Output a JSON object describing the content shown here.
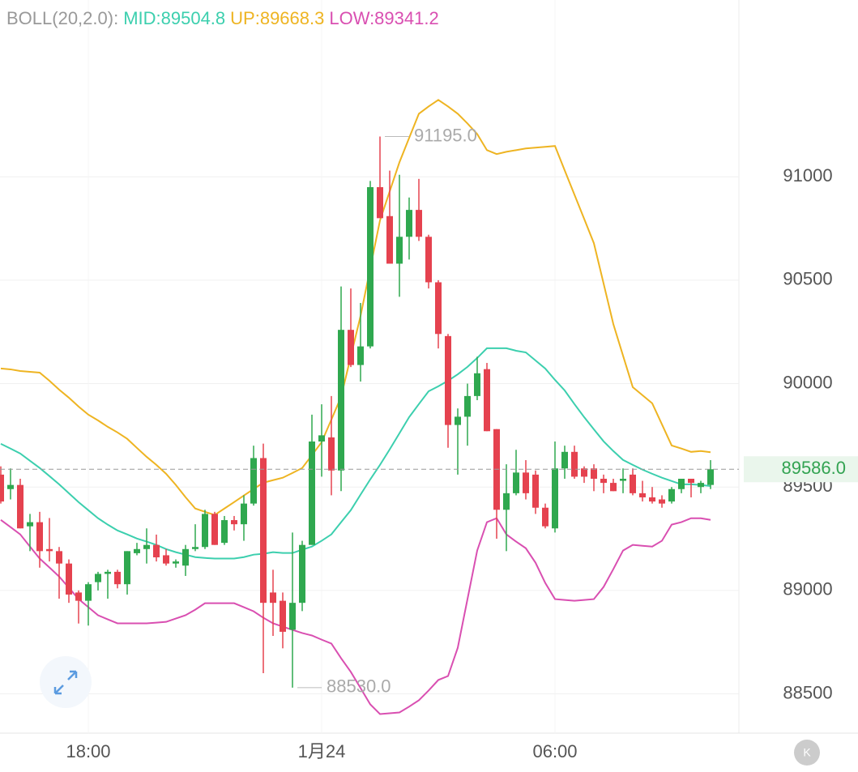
{
  "chart_data": {
    "type": "candlestick",
    "indicator": "BOLL(20,2.0):",
    "categories": [
      null,
      null,
      null,
      null,
      null,
      null,
      null,
      null,
      null,
      "18:00",
      null,
      null,
      null,
      null,
      null,
      null,
      null,
      null,
      null,
      null,
      null,
      null,
      null,
      null,
      null,
      null,
      null,
      null,
      null,
      null,
      null,
      null,
      null,
      "1月24",
      null,
      null,
      null,
      null,
      null,
      null,
      null,
      null,
      null,
      null,
      null,
      null,
      null,
      null,
      null,
      null,
      null,
      null,
      null,
      null,
      null,
      null,
      null,
      "06:00",
      null,
      null,
      null,
      null,
      null,
      null,
      null,
      null,
      null,
      null,
      null,
      null,
      null,
      null,
      null,
      null
    ],
    "open": [
      89560,
      89490,
      89510,
      89310,
      89330,
      89200,
      89190,
      89130,
      88990,
      88950,
      89040,
      89080,
      89090,
      89030,
      89180,
      89200,
      89220,
      89170,
      89130,
      89120,
      89200,
      89210,
      89370,
      89230,
      89340,
      89320,
      89420,
      89640,
      88990,
      88950,
      88810,
      88940,
      89220,
      89720,
      89740,
      89580,
      90260,
      90090,
      90180,
      90950,
      90810,
      90580,
      90710,
      90840,
      90710,
      90490,
      90230,
      89800,
      89840,
      89940,
      90070,
      89780,
      89390,
      89470,
      89570,
      89560,
      89400,
      89300,
      89590,
      89670,
      89590,
      89590,
      89540,
      89520,
      89530,
      89560,
      89470,
      89450,
      89440,
      89430,
      89490,
      89540,
      89500,
      89510
    ],
    "high": [
      89600,
      89590,
      89540,
      89370,
      89380,
      89350,
      89210,
      89150,
      89000,
      89040,
      89090,
      89100,
      89100,
      89190,
      89230,
      89300,
      89270,
      89200,
      89150,
      89220,
      89320,
      89390,
      89380,
      89360,
      89360,
      89460,
      89700,
      89710,
      89100,
      88990,
      89280,
      89240,
      89850,
      89900,
      89940,
      90470,
      90460,
      90390,
      90980,
      91195,
      91030,
      91010,
      90900,
      90990,
      90720,
      90500,
      90240,
      89880,
      90000,
      90130,
      90100,
      89780,
      89610,
      89680,
      89630,
      89580,
      89420,
      89720,
      89700,
      89700,
      89600,
      89610,
      89560,
      89540,
      89590,
      89590,
      89530,
      89500,
      89460,
      89500,
      89540,
      89540,
      89530,
      89630
    ],
    "low": [
      89420,
      89440,
      89300,
      89190,
      89110,
      89140,
      88960,
      88940,
      88840,
      88830,
      89000,
      88960,
      89010,
      88980,
      89170,
      89130,
      89140,
      89120,
      89110,
      89070,
      89190,
      89200,
      89220,
      89220,
      89290,
      89240,
      89410,
      88600,
      88780,
      88720,
      88530,
      88900,
      89220,
      89550,
      89460,
      89480,
      90080,
      90010,
      90170,
      90800,
      90580,
      90420,
      90600,
      90690,
      90460,
      90170,
      89690,
      89560,
      89700,
      89920,
      89770,
      89250,
      89190,
      89460,
      89440,
      89370,
      89300,
      89280,
      89540,
      89540,
      89520,
      89480,
      89470,
      89480,
      89470,
      89460,
      89430,
      89420,
      89400,
      89420,
      89470,
      89450,
      89470,
      89490
    ],
    "close": [
      89430,
      89510,
      89300,
      89330,
      89190,
      89190,
      89130,
      88980,
      88950,
      89030,
      89080,
      89090,
      89030,
      89190,
      89200,
      89220,
      89160,
      89130,
      89140,
      89200,
      89210,
      89370,
      89220,
      89340,
      89320,
      89420,
      89640,
      88940,
      88940,
      88800,
      88940,
      89220,
      89720,
      89750,
      89580,
      90260,
      90090,
      90180,
      90950,
      90800,
      90580,
      90710,
      90840,
      90710,
      90490,
      90240,
      89800,
      89840,
      89940,
      90050,
      89770,
      89390,
      89470,
      89570,
      89470,
      89400,
      89310,
      89590,
      89670,
      89550,
      89550,
      89540,
      89520,
      89480,
      89540,
      89470,
      89450,
      89430,
      89420,
      89490,
      89540,
      89520,
      89520,
      89586
    ],
    "up_color": "#2fa84f",
    "down_color": "#e5424f",
    "series": [
      {
        "name": "MID:89504.8",
        "color": "#3ccfae",
        "values": [
          89709,
          89686,
          89662,
          89627,
          89592,
          89553,
          89513,
          89470,
          89427,
          89388,
          89349,
          89318,
          89290,
          89271,
          89251,
          89236,
          89220,
          89200,
          89185,
          89173,
          89161,
          89157,
          89154,
          89154,
          89154,
          89161,
          89173,
          89177,
          89185,
          89181,
          89181,
          89197,
          89212,
          89240,
          89271,
          89330,
          89388,
          89463,
          89537,
          89607,
          89682,
          89760,
          89838,
          89901,
          89963,
          89987,
          90014,
          90045,
          90081,
          90124,
          90171,
          90171,
          90171,
          90159,
          90151,
          90112,
          90073,
          90018,
          89967,
          89901,
          89838,
          89779,
          89721,
          89674,
          89631,
          89607,
          89584,
          89564,
          89545,
          89529,
          89513,
          89513,
          89510,
          89504.8
        ]
      },
      {
        "name": "UP:89668.3",
        "color": "#eeb422",
        "values": [
          90073,
          90069,
          90061,
          90057,
          90053,
          90014,
          89971,
          89932,
          89889,
          89850,
          89822,
          89791,
          89764,
          89733,
          89689,
          89646,
          89607,
          89564,
          89510,
          89451,
          89396,
          89380,
          89365,
          89396,
          89427,
          89459,
          89490,
          89521,
          89533,
          89545,
          89568,
          89592,
          89654,
          89717,
          89826,
          89936,
          90132,
          90327,
          90558,
          90789,
          90930,
          91070,
          91188,
          91305,
          91340,
          91372,
          91340,
          91305,
          91258,
          91207,
          91129,
          91110,
          91121,
          91129,
          91137,
          91141,
          91145,
          91149,
          91031,
          90914,
          90797,
          90679,
          90484,
          90288,
          90135,
          89983,
          89944,
          89905,
          89803,
          89701,
          89686,
          89670,
          89674,
          89668.3
        ]
      },
      {
        "name": "LOW:89341.2",
        "color": "#d94fb1",
        "values": [
          89341,
          89306,
          89271,
          89212,
          89154,
          89111,
          89067,
          89013,
          88958,
          88919,
          88880,
          88860,
          88841,
          88841,
          88841,
          88841,
          88844,
          88848,
          88864,
          88880,
          88907,
          88938,
          88938,
          88938,
          88938,
          88919,
          88899,
          88868,
          88841,
          88825,
          88809,
          88794,
          88782,
          88762,
          88743,
          88672,
          88606,
          88528,
          88449,
          88402,
          88406,
          88410,
          88438,
          88469,
          88516,
          88567,
          88586,
          88723,
          88958,
          89193,
          89330,
          89349,
          89271,
          89236,
          89204,
          89134,
          89036,
          88958,
          88954,
          88950,
          88954,
          88958,
          89017,
          89103,
          89193,
          89220,
          89216,
          89212,
          89240,
          89318,
          89330,
          89349,
          89349,
          89341.2
        ]
      }
    ],
    "ylim": [
      88310,
      91855
    ],
    "yticks": [
      88500,
      89000,
      89500,
      90000,
      90500,
      91000
    ],
    "grid": true,
    "last_price": {
      "value": 89586,
      "label": "89586.0"
    },
    "annotations": [
      {
        "value": 91195,
        "label": "91195.0",
        "index": 39
      },
      {
        "value": 88530,
        "label": "88530.0",
        "index": 30
      }
    ]
  }
}
